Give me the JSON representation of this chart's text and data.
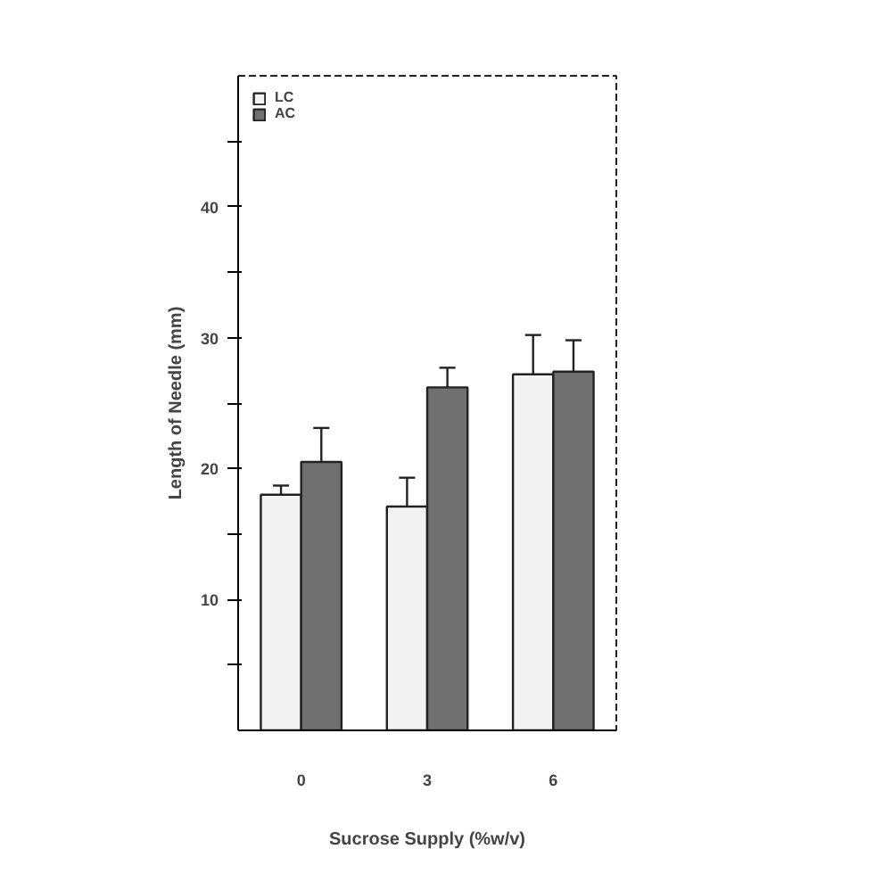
{
  "chart_data": {
    "type": "bar",
    "xlabel": "Sucrose Supply (%w/v)",
    "ylabel": "Length of Needle (mm)",
    "categories": [
      "0",
      "3",
      "6"
    ],
    "series": [
      {
        "name": "LC",
        "color": "#f2f2f2",
        "values": [
          18.0,
          17.1,
          27.2
        ],
        "errors": [
          [
            18.0,
            18.7
          ],
          [
            17.1,
            19.3
          ],
          [
            27.2,
            30.2
          ]
        ]
      },
      {
        "name": "AC",
        "color": "#707070",
        "values": [
          20.5,
          26.2,
          27.4
        ],
        "errors": [
          [
            20.5,
            23.1
          ],
          [
            26.2,
            27.7
          ],
          [
            27.4,
            29.8
          ]
        ]
      }
    ],
    "ylim": [
      0,
      50
    ],
    "yticks": [
      {
        "value": 5,
        "label": null
      },
      10,
      {
        "value": 15,
        "label": null
      },
      20,
      {
        "value": 25,
        "label": null
      },
      30,
      {
        "value": 35,
        "label": null
      },
      40,
      {
        "value": 45,
        "label": null
      }
    ],
    "grid": false,
    "legend": "top left"
  }
}
